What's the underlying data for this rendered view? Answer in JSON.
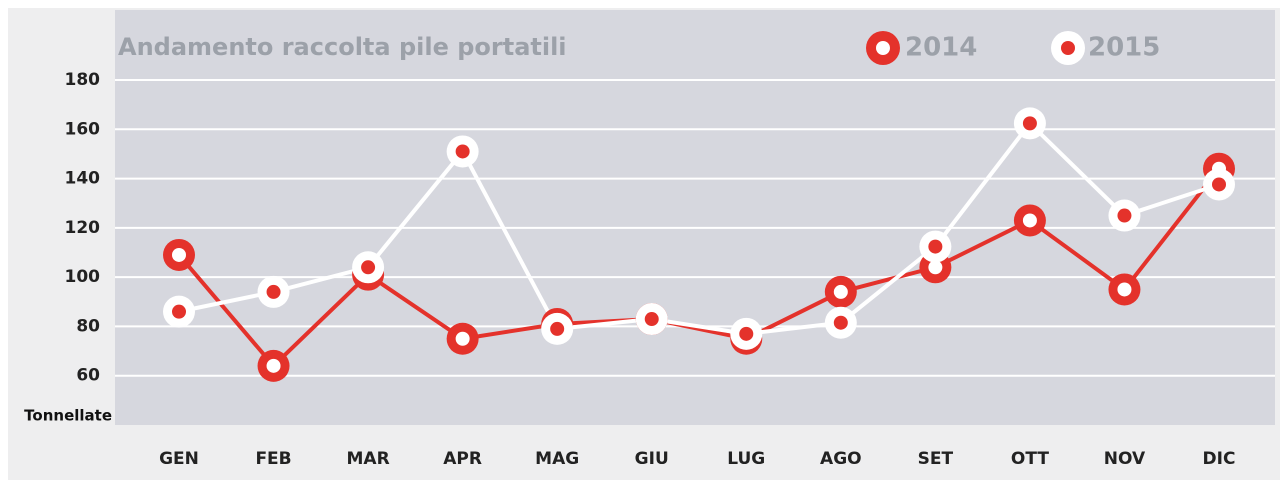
{
  "chart_data": {
    "type": "line",
    "title": "Andamento raccolta pile portatili",
    "y_label": "Tonnellate",
    "categories": [
      "GEN",
      "FEB",
      "MAR",
      "APR",
      "MAG",
      "GIU",
      "LUG",
      "AGO",
      "SET",
      "OTT",
      "NOV",
      "DIC"
    ],
    "series": [
      {
        "name": "2014",
        "color": "#e4322b",
        "marker_fill": "#e4322b",
        "marker_dot": "#ffffff",
        "values": [
          109,
          64,
          101,
          75,
          81,
          83,
          75,
          94,
          104,
          123,
          95,
          144
        ]
      },
      {
        "name": "2015",
        "color": "#ffffff",
        "marker_fill": "#ffffff",
        "marker_dot": "#e4322b",
        "values": [
          86,
          94,
          104,
          151,
          79,
          83,
          77,
          81.5,
          112.4,
          162.4,
          125,
          137.6
        ]
      }
    ],
    "ylim": [
      40,
      180
    ],
    "yticks": [
      60,
      80,
      100,
      120,
      140,
      160,
      180
    ],
    "grid": true
  }
}
